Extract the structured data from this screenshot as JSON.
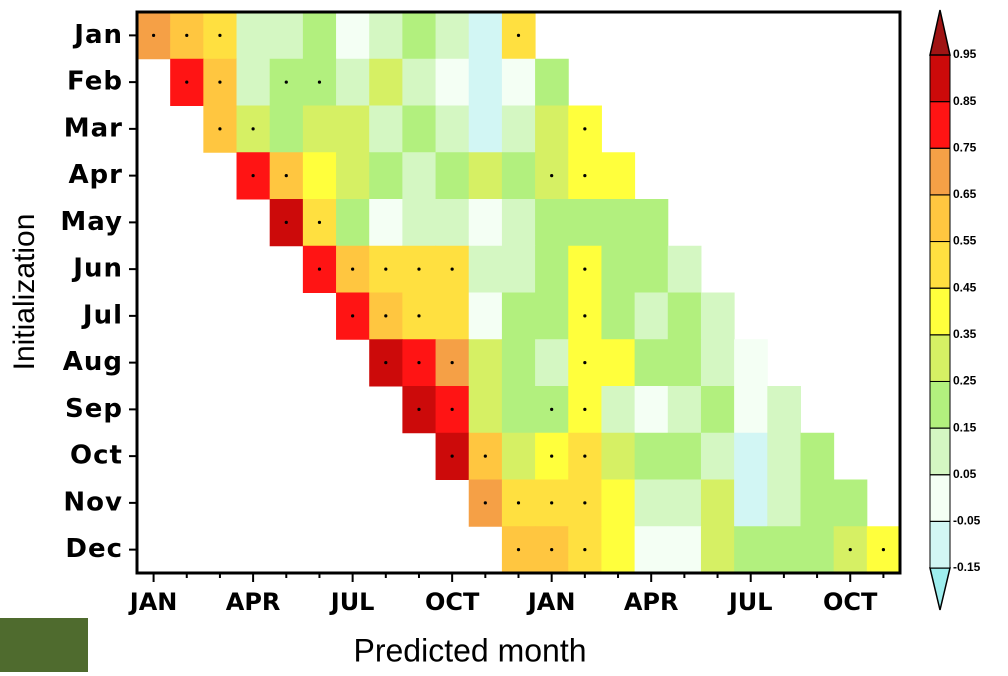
{
  "chart_data": {
    "type": "heatmap",
    "x_label": "Predicted month",
    "y_label": "Initialization",
    "x": [
      "JAN",
      null,
      null,
      "APR",
      null,
      null,
      "JUL",
      null,
      null,
      "OCT",
      null,
      null,
      "JAN",
      null,
      null,
      "APR",
      null,
      null,
      "JUL",
      null,
      null,
      "OCT",
      null
    ],
    "y": [
      "Jan",
      "Feb",
      "Mar",
      "Apr",
      "May",
      "Jun",
      "Jul",
      "Aug",
      "Sep",
      "Oct",
      "Nov",
      "Dec"
    ],
    "values": [
      [
        0.7,
        0.6,
        0.5,
        0.1,
        0.1,
        0.2,
        0.0,
        0.1,
        0.2,
        0.1,
        -0.1,
        0.5,
        null,
        null,
        null,
        null,
        null,
        null,
        null,
        null,
        null,
        null,
        null
      ],
      [
        null,
        0.8,
        0.6,
        0.1,
        0.2,
        0.2,
        0.1,
        0.3,
        0.1,
        0.0,
        -0.1,
        0.0,
        0.2,
        null,
        null,
        null,
        null,
        null,
        null,
        null,
        null,
        null,
        null
      ],
      [
        null,
        null,
        0.6,
        0.3,
        0.2,
        0.3,
        0.3,
        0.1,
        0.2,
        0.1,
        -0.1,
        0.1,
        0.3,
        0.4,
        null,
        null,
        null,
        null,
        null,
        null,
        null,
        null,
        null
      ],
      [
        null,
        null,
        null,
        0.8,
        0.6,
        0.4,
        0.3,
        0.2,
        0.1,
        0.2,
        0.3,
        0.2,
        0.3,
        0.4,
        0.4,
        null,
        null,
        null,
        null,
        null,
        null,
        null,
        null
      ],
      [
        null,
        null,
        null,
        null,
        0.9,
        0.5,
        0.2,
        0.0,
        0.1,
        0.1,
        0.0,
        0.1,
        0.2,
        0.2,
        0.2,
        0.2,
        null,
        null,
        null,
        null,
        null,
        null,
        null
      ],
      [
        null,
        null,
        null,
        null,
        null,
        0.8,
        0.6,
        0.5,
        0.5,
        0.5,
        0.1,
        0.1,
        0.2,
        0.4,
        0.2,
        0.2,
        0.1,
        null,
        null,
        null,
        null,
        null,
        null
      ],
      [
        null,
        null,
        null,
        null,
        null,
        null,
        0.8,
        0.6,
        0.5,
        0.5,
        0.0,
        0.2,
        0.2,
        0.4,
        0.2,
        0.1,
        0.2,
        0.1,
        null,
        null,
        null,
        null,
        null
      ],
      [
        null,
        null,
        null,
        null,
        null,
        null,
        null,
        0.9,
        0.8,
        0.7,
        0.3,
        0.2,
        0.1,
        0.4,
        0.4,
        0.2,
        0.2,
        0.1,
        0.0,
        null,
        null,
        null,
        null
      ],
      [
        null,
        null,
        null,
        null,
        null,
        null,
        null,
        null,
        0.9,
        0.8,
        0.3,
        0.2,
        0.2,
        0.4,
        0.1,
        0.0,
        0.1,
        0.2,
        0.0,
        0.1,
        null,
        null,
        null
      ],
      [
        null,
        null,
        null,
        null,
        null,
        null,
        null,
        null,
        null,
        0.9,
        0.6,
        0.3,
        0.4,
        0.5,
        0.3,
        0.2,
        0.2,
        0.1,
        -0.1,
        0.1,
        0.2,
        null,
        null
      ],
      [
        null,
        null,
        null,
        null,
        null,
        null,
        null,
        null,
        null,
        null,
        0.7,
        0.5,
        0.5,
        0.5,
        0.4,
        0.1,
        0.1,
        0.3,
        -0.1,
        0.1,
        0.2,
        0.2,
        null
      ],
      [
        null,
        null,
        null,
        null,
        null,
        null,
        null,
        null,
        null,
        null,
        null,
        0.6,
        0.6,
        0.5,
        0.4,
        0.0,
        0.0,
        0.3,
        0.2,
        0.2,
        0.2,
        0.3,
        0.4
      ]
    ],
    "significant": [
      [
        true,
        true,
        true,
        false,
        false,
        false,
        false,
        false,
        false,
        false,
        false,
        true,
        null,
        null,
        null,
        null,
        null,
        null,
        null,
        null,
        null,
        null,
        null
      ],
      [
        null,
        true,
        true,
        false,
        true,
        true,
        false,
        false,
        false,
        false,
        false,
        false,
        false,
        null,
        null,
        null,
        null,
        null,
        null,
        null,
        null,
        null,
        null
      ],
      [
        null,
        null,
        true,
        true,
        false,
        false,
        false,
        false,
        false,
        false,
        false,
        false,
        false,
        true,
        null,
        null,
        null,
        null,
        null,
        null,
        null,
        null,
        null
      ],
      [
        null,
        null,
        null,
        true,
        true,
        false,
        false,
        false,
        false,
        false,
        false,
        false,
        true,
        true,
        false,
        null,
        null,
        null,
        null,
        null,
        null,
        null,
        null
      ],
      [
        null,
        null,
        null,
        null,
        true,
        true,
        false,
        false,
        false,
        false,
        false,
        false,
        false,
        false,
        false,
        false,
        null,
        null,
        null,
        null,
        null,
        null,
        null
      ],
      [
        null,
        null,
        null,
        null,
        null,
        true,
        true,
        true,
        true,
        true,
        false,
        false,
        false,
        true,
        false,
        false,
        false,
        null,
        null,
        null,
        null,
        null,
        null
      ],
      [
        null,
        null,
        null,
        null,
        null,
        null,
        true,
        true,
        true,
        false,
        false,
        false,
        false,
        true,
        false,
        false,
        false,
        false,
        null,
        null,
        null,
        null,
        null
      ],
      [
        null,
        null,
        null,
        null,
        null,
        null,
        null,
        true,
        true,
        true,
        false,
        false,
        false,
        true,
        false,
        false,
        false,
        false,
        false,
        null,
        null,
        null,
        null
      ],
      [
        null,
        null,
        null,
        null,
        null,
        null,
        null,
        null,
        true,
        true,
        false,
        false,
        true,
        true,
        false,
        false,
        false,
        false,
        false,
        false,
        null,
        null,
        null
      ],
      [
        null,
        null,
        null,
        null,
        null,
        null,
        null,
        null,
        null,
        true,
        true,
        false,
        true,
        true,
        false,
        false,
        false,
        false,
        false,
        false,
        false,
        null,
        null
      ],
      [
        null,
        null,
        null,
        null,
        null,
        null,
        null,
        null,
        null,
        null,
        true,
        true,
        true,
        true,
        false,
        false,
        false,
        false,
        false,
        false,
        false,
        false,
        null
      ],
      [
        null,
        null,
        null,
        null,
        null,
        null,
        null,
        null,
        null,
        null,
        null,
        true,
        true,
        true,
        false,
        false,
        false,
        false,
        false,
        false,
        false,
        true,
        true
      ]
    ],
    "levels": [
      -0.15,
      -0.05,
      0.05,
      0.15,
      0.25,
      0.35,
      0.45,
      0.55,
      0.65,
      0.75,
      0.85,
      0.95
    ],
    "colors": [
      "#9eeeee",
      "#d2f6f4",
      "#f4fff4",
      "#d4f7c2",
      "#b2f07e",
      "#d6f064",
      "#ffff3c",
      "#ffe040",
      "#ffc640",
      "#f5a046",
      "#ff1414",
      "#cc0a0a",
      "#a01414"
    ]
  }
}
